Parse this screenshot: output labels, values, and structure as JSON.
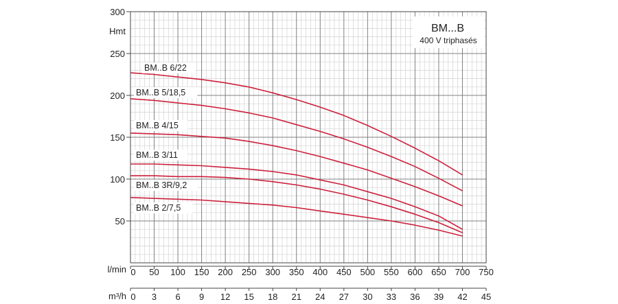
{
  "chart_data": {
    "type": "line",
    "title": "BM...B",
    "subtitle": "400 V triphasés",
    "ylabel": "Hmt",
    "x_primary": {
      "unit": "l/min",
      "ticks": [
        0,
        50,
        100,
        150,
        200,
        250,
        300,
        350,
        400,
        450,
        500,
        550,
        600,
        650,
        700,
        750
      ],
      "lim": [
        0,
        750
      ]
    },
    "x_secondary": {
      "unit": "m³/h",
      "ticks": [
        0,
        3,
        6,
        9,
        12,
        15,
        18,
        21,
        24,
        27,
        30,
        33,
        36,
        39,
        42,
        45
      ],
      "lim": [
        0,
        45
      ]
    },
    "y": {
      "ticks": [
        50,
        100,
        150,
        200,
        250,
        300
      ],
      "lim": [
        0,
        300
      ]
    },
    "grid": true,
    "colors": {
      "series": "#cc1f3b",
      "grid_major": "#808080",
      "grid_minor": "#d2d2d2",
      "axis": "#444444",
      "text": "#222222"
    },
    "series": [
      {
        "name": "BM..B 6/22",
        "x": [
          0,
          50,
          100,
          150,
          200,
          250,
          300,
          350,
          400,
          450,
          500,
          550,
          600,
          650,
          700
        ],
        "y": [
          227,
          225,
          222,
          219,
          215,
          210,
          203,
          195,
          186,
          176,
          164,
          151,
          137,
          122,
          105
        ]
      },
      {
        "name": "BM..B 5/18,5",
        "x": [
          0,
          50,
          100,
          150,
          200,
          250,
          300,
          350,
          400,
          450,
          500,
          550,
          600,
          650,
          700
        ],
        "y": [
          196,
          194,
          191,
          188,
          184,
          179,
          173,
          165,
          157,
          148,
          138,
          127,
          115,
          101,
          86
        ]
      },
      {
        "name": "BM..B 4/15",
        "x": [
          0,
          50,
          100,
          150,
          200,
          250,
          300,
          350,
          400,
          450,
          500,
          550,
          600,
          650,
          700
        ],
        "y": [
          155,
          154,
          153,
          151,
          149,
          145,
          140,
          134,
          127,
          119,
          111,
          101,
          91,
          80,
          68
        ]
      },
      {
        "name": "BM..B 3/11",
        "x": [
          0,
          50,
          100,
          150,
          200,
          250,
          300,
          350,
          400,
          450,
          500,
          550,
          600,
          650,
          700
        ],
        "y": [
          118,
          118,
          117,
          116,
          114,
          112,
          109,
          105,
          99,
          93,
          85,
          77,
          67,
          56,
          40
        ]
      },
      {
        "name": "BM..B 3R/9,2",
        "x": [
          0,
          50,
          100,
          150,
          200,
          250,
          300,
          350,
          400,
          450,
          500,
          550,
          600,
          650,
          700
        ],
        "y": [
          104,
          104,
          103,
          103,
          102,
          100,
          97,
          93,
          88,
          82,
          75,
          67,
          58,
          48,
          36
        ]
      },
      {
        "name": "BM..B 2/7,5",
        "x": [
          0,
          50,
          100,
          150,
          200,
          250,
          300,
          350,
          400,
          450,
          500,
          550,
          600,
          650,
          700
        ],
        "y": [
          78,
          77,
          76,
          75,
          73,
          71,
          69,
          66,
          62,
          58,
          54,
          50,
          45,
          39,
          32
        ]
      }
    ]
  }
}
